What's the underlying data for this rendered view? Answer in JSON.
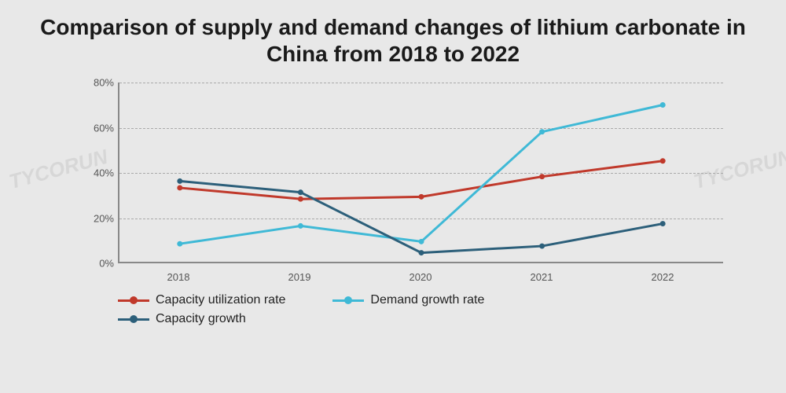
{
  "title": "Comparison of supply and demand changes of lithium carbonate in China from 2018 to 2022",
  "chart": {
    "type": "line",
    "background_color": "#e8e8e8",
    "grid_color": "#aaaaaa",
    "axis_color": "#888888",
    "ylim": [
      0,
      80
    ],
    "ytick_step": 20,
    "yticks": [
      "0%",
      "20%",
      "40%",
      "60%",
      "80%"
    ],
    "categories": [
      "2018",
      "2019",
      "2020",
      "2021",
      "2022"
    ],
    "series": [
      {
        "name": "Capacity utilization rate",
        "color": "#c0392b",
        "line_width": 3,
        "marker": "circle",
        "marker_size": 7,
        "values": [
          33,
          28,
          29,
          38,
          45
        ]
      },
      {
        "name": "Demand growth rate",
        "color": "#3fb9d6",
        "line_width": 3,
        "marker": "circle",
        "marker_size": 7,
        "values": [
          8,
          16,
          9,
          58,
          70
        ]
      },
      {
        "name": "Capacity growth",
        "color": "#2c5f7a",
        "line_width": 3,
        "marker": "circle",
        "marker_size": 7,
        "values": [
          36,
          31,
          4,
          7,
          17
        ]
      }
    ],
    "label_fontsize": 13,
    "title_fontsize": 28
  },
  "watermark": "TYCORUN",
  "legend": {
    "items": [
      "Capacity utilization rate",
      "Demand growth rate",
      "Capacity growth"
    ]
  }
}
